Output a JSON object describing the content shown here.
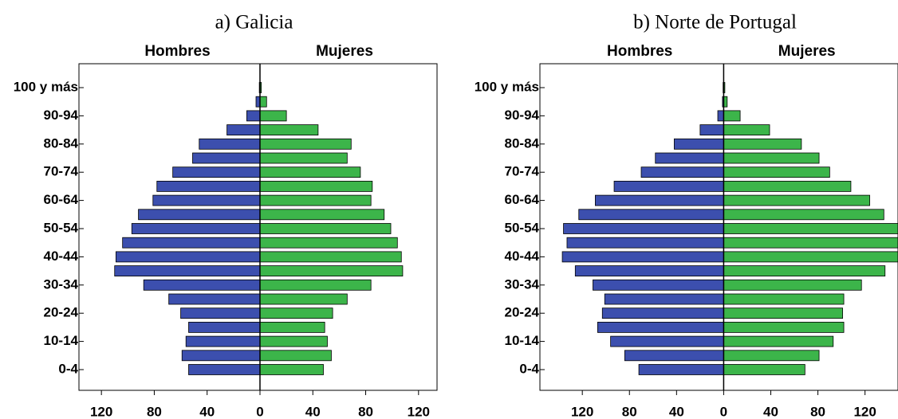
{
  "chart_data": [
    {
      "type": "pyramid",
      "title": "a)   Galicia",
      "categories": [
        "0-4",
        null,
        "10-14",
        null,
        "20-24",
        null,
        "30-34",
        null,
        "40-44",
        null,
        "50-54",
        null,
        "60-64",
        null,
        "70-74",
        null,
        "80-84",
        null,
        "90-94",
        null,
        "100 y más"
      ],
      "series": [
        {
          "name": "Hombres",
          "color": "#3c4fae",
          "values": [
            54,
            59,
            56,
            54,
            60,
            69,
            88,
            110,
            109,
            104,
            97,
            92,
            81,
            78,
            66,
            51,
            46,
            25,
            10,
            3,
            0.5
          ]
        },
        {
          "name": "Mujeres",
          "color": "#3cb54a",
          "values": [
            48,
            54,
            51,
            49,
            55,
            66,
            84,
            108,
            107,
            104,
            99,
            94,
            84,
            85,
            76,
            66,
            69,
            44,
            20,
            5,
            1
          ]
        }
      ],
      "xlim": [
        -137,
        134
      ],
      "xticks": [
        {
          "value": -120,
          "label": "120"
        },
        {
          "value": -80,
          "label": "80"
        },
        {
          "value": -40,
          "label": "40"
        },
        0,
        40,
        80,
        120
      ]
    },
    {
      "type": "pyramid",
      "title": "b)   Norte de Portugal",
      "categories": [
        "0-4",
        null,
        "10-14",
        null,
        "20-24",
        null,
        "30-34",
        null,
        "40-44",
        null,
        "50-54",
        null,
        "60-64",
        null,
        "70-74",
        null,
        "80-84",
        null,
        "90-94",
        null,
        "100 y más"
      ],
      "series": [
        {
          "name": "Hombres",
          "color": "#3c4fae",
          "values": [
            72,
            84,
            96,
            107,
            103,
            101,
            111,
            126,
            137,
            133,
            136,
            123,
            109,
            93,
            70,
            58,
            42,
            20,
            5,
            1,
            0.5
          ]
        },
        {
          "name": "Mujeres",
          "color": "#3cb54a",
          "values": [
            69,
            81,
            93,
            102,
            101,
            102,
            117,
            137,
            150,
            150,
            148,
            136,
            124,
            108,
            90,
            81,
            66,
            39,
            14,
            3,
            1
          ]
        }
      ],
      "xlim": [
        -156,
        148
      ],
      "xticks": [
        {
          "value": -120,
          "label": "120"
        },
        {
          "value": -80,
          "label": "80"
        },
        {
          "value": -40,
          "label": "40"
        },
        0,
        40,
        80,
        120
      ]
    }
  ]
}
